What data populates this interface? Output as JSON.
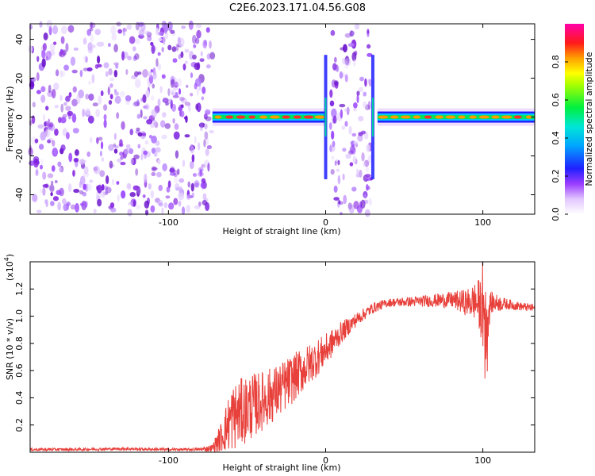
{
  "title": "C2E6.2023.171.04.56.G08",
  "chart_data": [
    {
      "type": "heatmap",
      "name": "spectrogram",
      "xlabel": "Height of straight line (km)",
      "ylabel": "Frequency (Hz)",
      "xlim": [
        -188,
        133
      ],
      "ylim": [
        -50,
        48
      ],
      "xticks": [
        -100,
        0,
        100
      ],
      "xtick_labels": [
        "-100",
        "0",
        "100"
      ],
      "yticks": [
        -40,
        -20,
        0,
        20,
        40
      ],
      "ytick_labels": [
        "-40",
        "-20",
        "0",
        "20",
        "40"
      ],
      "colorbar": {
        "label": "Normalized spectral amplitude",
        "range": [
          0,
          1
        ],
        "ticks": [
          0,
          0.2,
          0.4,
          0.6,
          0.8
        ],
        "tick_labels": [
          "0.0",
          "0.2",
          "0.4",
          "0.6",
          "0.8"
        ]
      },
      "regions": [
        {
          "x": [
            -188,
            -72
          ],
          "pattern": "broadband noise",
          "level": 0.12
        },
        {
          "x": [
            -72,
            0
          ],
          "pattern": "narrow tone near 0 Hz",
          "freq": 0,
          "level": 0.85
        },
        {
          "x": [
            3,
            29
          ],
          "pattern": "broadband noise",
          "level": 0.12
        },
        {
          "x": [
            33,
            133
          ],
          "pattern": "narrow tone near 0 Hz",
          "freq": 0,
          "level": 0.9
        }
      ]
    },
    {
      "type": "line",
      "name": "snr",
      "xlabel": "Height of straight line (km)",
      "ylabel": "SNR (10 * v/v)",
      "y_multiplier": "(x10",
      "y_multiplier_exp": "4",
      "xlim": [
        -188,
        133
      ],
      "ylim": [
        0,
        1.4
      ],
      "xticks": [
        -100,
        0,
        100
      ],
      "xtick_labels": [
        "-100",
        "0",
        "100"
      ],
      "yticks": [
        0.2,
        0.4,
        0.6,
        0.8,
        1.0,
        1.2
      ],
      "ytick_labels": [
        "0.2",
        "0.4",
        "0.6",
        "0.8",
        "1.0",
        "1.2"
      ],
      "color": "#e8403b",
      "series": [
        {
          "x": [
            -188,
            -160,
            -130,
            -100,
            -80,
            -72,
            -66,
            -60,
            -50,
            -40,
            -30,
            -20,
            -10,
            0,
            10,
            20,
            30,
            40,
            60,
            80,
            90,
            95,
            100,
            102,
            105,
            115,
            125,
            133
          ],
          "y": [
            0.02,
            0.02,
            0.025,
            0.02,
            0.02,
            0.03,
            0.12,
            0.25,
            0.32,
            0.38,
            0.45,
            0.55,
            0.65,
            0.75,
            0.88,
            0.98,
            1.06,
            1.1,
            1.11,
            1.12,
            1.1,
            1.11,
            1.05,
            0.95,
            1.1,
            1.09,
            1.07,
            1.06
          ],
          "noise": [
            0.01,
            0.01,
            0.01,
            0.01,
            0.01,
            0.03,
            0.12,
            0.25,
            0.25,
            0.22,
            0.2,
            0.18,
            0.15,
            0.12,
            0.08,
            0.05,
            0.04,
            0.03,
            0.04,
            0.06,
            0.1,
            0.14,
            0.25,
            0.3,
            0.08,
            0.04,
            0.03,
            0.03
          ]
        }
      ]
    }
  ]
}
